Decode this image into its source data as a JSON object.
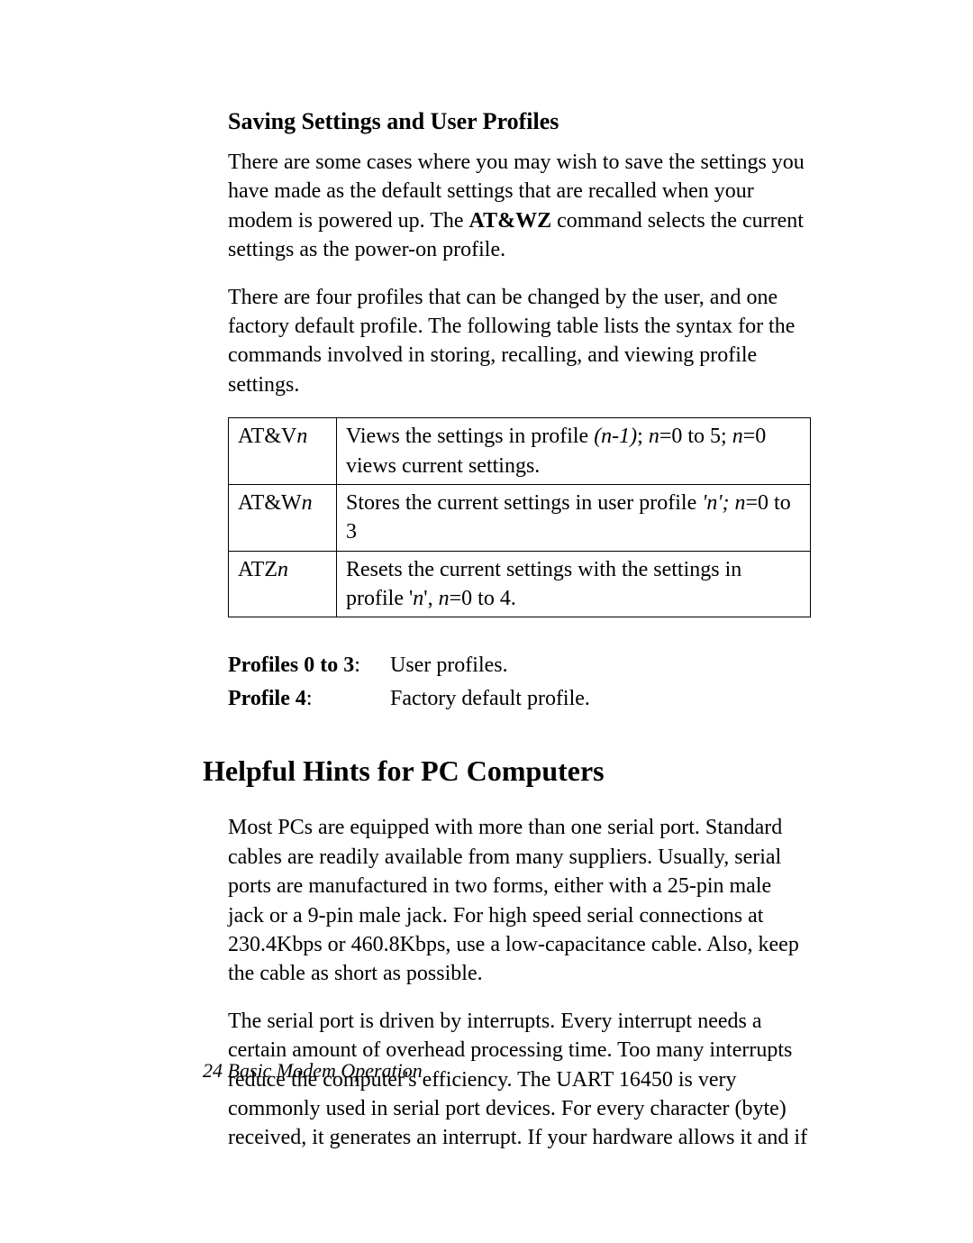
{
  "section1": {
    "heading": "Saving Settings and User Profiles",
    "para1_pre": "There are some cases where you may wish to save the settings you have made as the default settings that are recalled when your modem is powered up. The ",
    "para1_bold": "AT&WZ",
    "para1_post": " command selects the current settings as the power-on profile.",
    "para2": "There are four profiles that can be changed by the user, and one factory default profile. The following table lists the syntax for the commands involved in storing, recalling, and viewing profile settings."
  },
  "table": {
    "rows": [
      {
        "cmd_prefix": "AT&V",
        "cmd_suffix": "n",
        "desc_pre": "Views the settings in profile ",
        "desc_i1": "(n-1)",
        "desc_mid1": "; ",
        "desc_i2": "n",
        "desc_mid2": "=0 to 5; ",
        "desc_i3": "n",
        "desc_post": "=0 views current settings."
      },
      {
        "cmd_prefix": "AT&W",
        "cmd_suffix": "n",
        "desc_pre": "Stores the current settings in user profile ",
        "desc_i1": "'n'; n",
        "desc_post": "=0 to 3"
      },
      {
        "cmd_prefix": "ATZ",
        "cmd_suffix": "n",
        "desc_pre": "Resets the current settings with the settings in profile '",
        "desc_i1": "n",
        "desc_mid1": "', ",
        "desc_i2": "n",
        "desc_post": "=0 to 4."
      }
    ]
  },
  "profiles": {
    "row1_label": "Profiles 0 to 3",
    "row1_colon": ":",
    "row1_value": "User profiles.",
    "row2_label": "Profile 4",
    "row2_colon": ":",
    "row2_value": "Factory default profile."
  },
  "section2": {
    "heading": "Helpful Hints for PC Computers",
    "para1": "Most PCs are equipped with more than one serial port. Standard cables are readily available from many suppliers. Usually, serial ports are manufactured in two forms, either with a 25-pin male jack or a 9-pin male jack. For high speed serial connections at 230.4Kbps or 460.8Kbps, use a low-capacitance cable. Also, keep the cable as short as possible.",
    "para2": "The serial port is driven by interrupts. Every interrupt needs a certain amount of overhead processing time. Too many interrupts reduce the computer's efficiency. The UART 16450 is very commonly used in serial port devices. For every character (byte) received, it generates an interrupt. If your hardware allows it and if"
  },
  "footer": {
    "page_num": "24",
    "title": "  Basic Modem Operation"
  }
}
